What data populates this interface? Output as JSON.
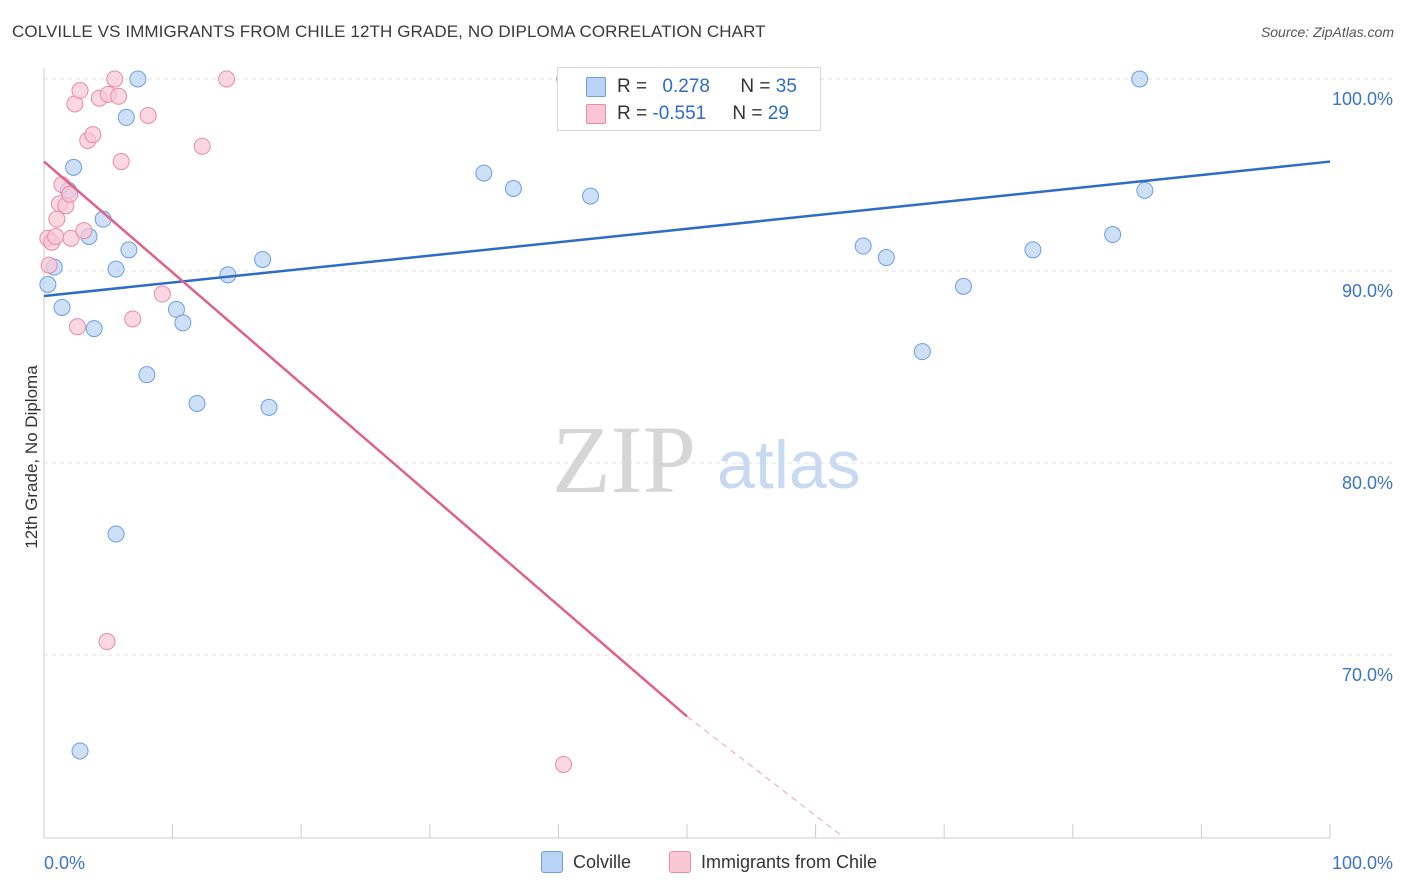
{
  "header": {
    "title": "COLVILLE VS IMMIGRANTS FROM CHILE 12TH GRADE, NO DIPLOMA CORRELATION CHART",
    "source": "Source: ZipAtlas.com"
  },
  "watermark": {
    "zip": "ZIP",
    "atlas": "atlas"
  },
  "stats_legend": {
    "rows": [
      {
        "r_label": "R = ",
        "r_value": "0.278",
        "n_label": "N = ",
        "n_value": "35"
      },
      {
        "r_label": "R = ",
        "r_value": "-0.551",
        "n_label": "N = ",
        "n_value": "29"
      }
    ]
  },
  "colors": {
    "colville_fill": "#b8d3f5",
    "colville_stroke": "#6b9fe0",
    "colville_line": "#2f6cc5",
    "chile_fill": "#f9c6d6",
    "chile_stroke": "#e88aa8",
    "chile_line": "#e0618c",
    "grid": "#e2e2e2",
    "axis_label": "#3d74c9"
  },
  "chart_data": {
    "type": "scatter",
    "title": "COLVILLE VS IMMIGRANTS FROM CHILE 12TH GRADE, NO DIPLOMA CORRELATION CHART",
    "xlabel": "",
    "ylabel": "12th Grade, No Diploma",
    "xlim": [
      0,
      100
    ],
    "ylim": [
      60.5,
      101.5
    ],
    "x_tick_labels": [
      "0.0%",
      "100.0%"
    ],
    "y_ticks": [
      {
        "value": 100,
        "label": "100.0%"
      },
      {
        "value": 90,
        "label": "90.0%"
      },
      {
        "value": 80,
        "label": "80.0%"
      },
      {
        "value": 70,
        "label": "70.0%"
      }
    ],
    "grid": true,
    "legend_position": "bottom",
    "series": [
      {
        "name": "Colville",
        "points": [
          [
            0.3,
            89.3
          ],
          [
            0.8,
            90.2
          ],
          [
            1.4,
            88.1
          ],
          [
            1.9,
            94.2
          ],
          [
            2.3,
            95.4
          ],
          [
            2.8,
            65.0
          ],
          [
            3.5,
            91.8
          ],
          [
            3.9,
            87.0
          ],
          [
            4.6,
            92.7
          ],
          [
            5.6,
            90.1
          ],
          [
            5.6,
            76.3
          ],
          [
            6.4,
            98.0
          ],
          [
            6.6,
            91.1
          ],
          [
            7.3,
            100.0
          ],
          [
            8.0,
            84.6
          ],
          [
            10.3,
            88.0
          ],
          [
            10.8,
            87.3
          ],
          [
            11.9,
            83.1
          ],
          [
            14.3,
            89.8
          ],
          [
            17.0,
            90.6
          ],
          [
            17.5,
            82.9
          ],
          [
            34.2,
            95.1
          ],
          [
            36.5,
            94.3
          ],
          [
            40.5,
            100.0
          ],
          [
            42.5,
            93.9
          ],
          [
            46.0,
            100.0
          ],
          [
            53.6,
            100.0
          ],
          [
            63.7,
            91.3
          ],
          [
            65.5,
            90.7
          ],
          [
            68.3,
            85.8
          ],
          [
            71.5,
            89.2
          ],
          [
            76.9,
            91.1
          ],
          [
            83.1,
            91.9
          ],
          [
            85.2,
            100.0
          ],
          [
            85.6,
            94.2
          ]
        ],
        "trend": {
          "x": [
            0,
            100
          ],
          "y": [
            88.7,
            95.7
          ]
        }
      },
      {
        "name": "Immigrants from Chile",
        "points": [
          [
            0.3,
            91.7
          ],
          [
            0.4,
            90.3
          ],
          [
            0.6,
            91.5
          ],
          [
            0.9,
            91.8
          ],
          [
            1.0,
            92.7
          ],
          [
            1.2,
            93.5
          ],
          [
            1.4,
            94.5
          ],
          [
            1.7,
            93.4
          ],
          [
            2.0,
            94.0
          ],
          [
            2.1,
            91.7
          ],
          [
            2.4,
            98.7
          ],
          [
            2.6,
            87.1
          ],
          [
            2.8,
            99.4
          ],
          [
            3.1,
            92.1
          ],
          [
            3.4,
            96.8
          ],
          [
            3.8,
            97.1
          ],
          [
            4.3,
            99.0
          ],
          [
            4.9,
            70.7
          ],
          [
            5.0,
            99.2
          ],
          [
            5.5,
            100.0
          ],
          [
            5.8,
            99.1
          ],
          [
            6.0,
            95.7
          ],
          [
            6.9,
            87.5
          ],
          [
            8.1,
            98.1
          ],
          [
            9.2,
            88.8
          ],
          [
            12.3,
            96.5
          ],
          [
            14.2,
            100.0
          ],
          [
            40.4,
            64.3
          ],
          [
            40.6,
            100.0
          ]
        ],
        "trend": {
          "x": [
            0,
            50
          ],
          "y": [
            95.7,
            66.8
          ]
        },
        "trend_extension": {
          "x": [
            50,
            62.2
          ],
          "y": [
            66.8,
            60.5
          ]
        }
      }
    ]
  },
  "bottom_legend": {
    "items": [
      "Colville",
      "Immigrants from Chile"
    ]
  }
}
